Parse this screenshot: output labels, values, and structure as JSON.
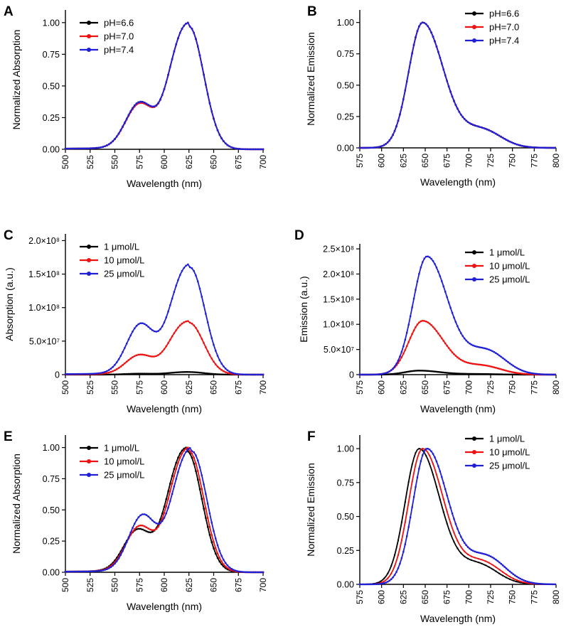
{
  "colors": {
    "black": "#000000",
    "red": "#ee1111",
    "blue": "#1f1fd6"
  },
  "chart_data": [
    {
      "panel": "A",
      "type": "line",
      "xlabel": "Wavelength (nm)",
      "ylabel": "Normalized Absorption",
      "xlim": [
        500,
        700
      ],
      "ylim": [
        0,
        1.1
      ],
      "xticks": [
        "500",
        "525",
        "550",
        "575",
        "600",
        "625",
        "650",
        "675",
        "700"
      ],
      "yticks": [
        "0.00",
        "0.25",
        "0.50",
        "0.75",
        "1.00"
      ],
      "ytick_values": [
        0,
        0.25,
        0.5,
        0.75,
        1.0
      ],
      "legend_position": "top-left",
      "series": [
        {
          "name": "pH=6.6",
          "color": "black",
          "shape": "abs",
          "peak": 625,
          "shoulder": 0.39,
          "scale": 1
        },
        {
          "name": "pH=7.0",
          "color": "red",
          "shape": "abs",
          "peak": 625,
          "shoulder": 0.38,
          "scale": 1
        },
        {
          "name": "pH=7.4",
          "color": "blue",
          "shape": "abs",
          "peak": 625,
          "shoulder": 0.39,
          "scale": 1
        }
      ]
    },
    {
      "panel": "B",
      "type": "line",
      "xlabel": "Wavelength (nm)",
      "ylabel": "Normalized Emission",
      "xlim": [
        575,
        800
      ],
      "ylim": [
        0,
        1.1
      ],
      "xticks": [
        "575",
        "600",
        "625",
        "650",
        "675",
        "700",
        "725",
        "750",
        "775",
        "800"
      ],
      "yticks": [
        "0.00",
        "0.25",
        "0.50",
        "0.75",
        "1.00"
      ],
      "ytick_values": [
        0,
        0.25,
        0.5,
        0.75,
        1.0
      ],
      "legend_position": "top-right",
      "series": [
        {
          "name": "pH=6.6",
          "color": "black",
          "shape": "em",
          "peak": 647,
          "shoulder": 0.15,
          "scale": 1
        },
        {
          "name": "pH=7.0",
          "color": "red",
          "shape": "em",
          "peak": 647,
          "shoulder": 0.15,
          "scale": 1
        },
        {
          "name": "pH=7.4",
          "color": "blue",
          "shape": "em",
          "peak": 647,
          "shoulder": 0.15,
          "scale": 1
        }
      ]
    },
    {
      "panel": "C",
      "type": "line",
      "xlabel": "Wavelength (nm)",
      "ylabel": "Absorption (a.u.)",
      "xlim": [
        500,
        700
      ],
      "ylim": [
        0,
        210000000
      ],
      "xticks": [
        "500",
        "525",
        "550",
        "575",
        "600",
        "625",
        "650",
        "675",
        "700"
      ],
      "yticks": [
        "0",
        "5.0×10⁷",
        "1.0×10⁸",
        "1.5×10⁸",
        "2.0×10⁸"
      ],
      "ytick_values": [
        0,
        50000000,
        100000000,
        150000000,
        200000000
      ],
      "legend_position": "top-left",
      "series": [
        {
          "name": "1 μmol/L",
          "color": "black",
          "shape": "abs",
          "peak": 625,
          "shoulder": 0.38,
          "scale": 4000000
        },
        {
          "name": "10 μmol/L",
          "color": "red",
          "shape": "abs",
          "peak": 625,
          "shoulder": 0.39,
          "scale": 80000000
        },
        {
          "name": "25 μmol/L",
          "color": "blue",
          "shape": "abs",
          "peak": 626,
          "shoulder": 0.49,
          "scale": 165000000
        }
      ]
    },
    {
      "panel": "D",
      "type": "line",
      "xlabel": "Wavelength (nm)",
      "ylabel": "Emission (a.u.)",
      "xlim": [
        575,
        800
      ],
      "ylim": [
        0,
        260000000
      ],
      "xticks": [
        "575",
        "600",
        "625",
        "650",
        "675",
        "700",
        "725",
        "750",
        "775",
        "800"
      ],
      "yticks": [
        "0",
        "5.0×10⁷",
        "1.0×10⁸",
        "1.5×10⁸",
        "2.0×10⁸",
        "2.5×10⁸"
      ],
      "ytick_values": [
        0,
        50000000,
        100000000,
        150000000,
        200000000,
        250000000
      ],
      "legend_position": "top-right",
      "series": [
        {
          "name": "1 μmol/L",
          "color": "black",
          "shape": "em",
          "peak": 643,
          "shoulder": 0.15,
          "scale": 8000000
        },
        {
          "name": "10 μmol/L",
          "color": "red",
          "shape": "em",
          "peak": 647,
          "shoulder": 0.17,
          "scale": 107000000
        },
        {
          "name": "25 μmol/L",
          "color": "blue",
          "shape": "em",
          "peak": 652,
          "shoulder": 0.21,
          "scale": 235000000
        }
      ]
    },
    {
      "panel": "E",
      "type": "line",
      "xlabel": "Wavelength (nm)",
      "ylabel": "Normalized Absorption",
      "xlim": [
        500,
        700
      ],
      "ylim": [
        0,
        1.1
      ],
      "xticks": [
        "500",
        "525",
        "550",
        "575",
        "600",
        "625",
        "650",
        "675",
        "700"
      ],
      "yticks": [
        "0.00",
        "0.25",
        "0.50",
        "0.75",
        "1.00"
      ],
      "ytick_values": [
        0,
        0.25,
        0.5,
        0.75,
        1.0
      ],
      "legend_position": "top-left",
      "series": [
        {
          "name": "1 μmol/L",
          "color": "black",
          "shape": "abs",
          "peak": 623,
          "shoulder": 0.36,
          "scale": 1
        },
        {
          "name": "10 μmol/L",
          "color": "red",
          "shape": "abs",
          "peak": 625,
          "shoulder": 0.39,
          "scale": 1
        },
        {
          "name": "25 μmol/L",
          "color": "blue",
          "shape": "abs",
          "peak": 628,
          "shoulder": 0.49,
          "scale": 1
        }
      ]
    },
    {
      "panel": "F",
      "type": "line",
      "xlabel": "Wavelength (nm)",
      "ylabel": "Normalized Emission",
      "xlim": [
        575,
        800
      ],
      "ylim": [
        0,
        1.1
      ],
      "xticks": [
        "575",
        "600",
        "625",
        "650",
        "675",
        "700",
        "725",
        "750",
        "775",
        "800"
      ],
      "yticks": [
        "0.00",
        "0.25",
        "0.50",
        "0.75",
        "1.00"
      ],
      "ytick_values": [
        0,
        0.25,
        0.5,
        0.75,
        1.0
      ],
      "legend_position": "top-right",
      "series": [
        {
          "name": "1 μmol/L",
          "color": "black",
          "shape": "em",
          "peak": 643,
          "shoulder": 0.15,
          "scale": 1
        },
        {
          "name": "10 μmol/L",
          "color": "red",
          "shape": "em",
          "peak": 647,
          "shoulder": 0.17,
          "scale": 1
        },
        {
          "name": "25 μmol/L",
          "color": "blue",
          "shape": "em",
          "peak": 652,
          "shoulder": 0.21,
          "scale": 1
        }
      ]
    }
  ]
}
